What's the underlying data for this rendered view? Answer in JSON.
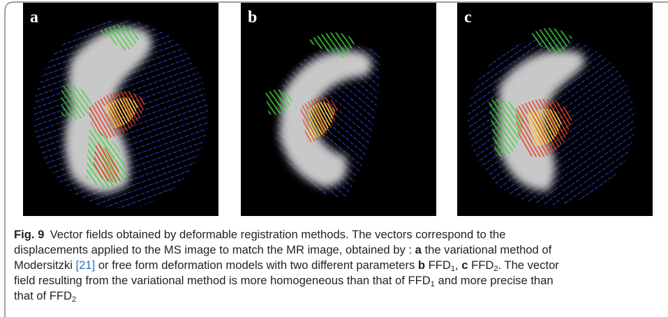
{
  "figure": {
    "panels": [
      {
        "label": "a"
      },
      {
        "label": "b"
      },
      {
        "label": "c"
      }
    ],
    "caption": {
      "label": "Fig. 9",
      "parts": [
        "Vector fields obtained by deformable registration methods. The vectors correspond to the",
        "displacements applied to the MS image to match the MR image, obtained by : ",
        "a",
        " the variational method of",
        "Modersitzki ",
        "[21]",
        " or free form deformation models with two different parameters ",
        "b",
        " FFD",
        "1",
        ", ",
        "c",
        " FFD",
        "2",
        ". The vector",
        "field resulting from the variational method is more homogeneous than that of FFD",
        "1",
        " and more precise than",
        "that of FFD",
        "2"
      ]
    }
  }
}
